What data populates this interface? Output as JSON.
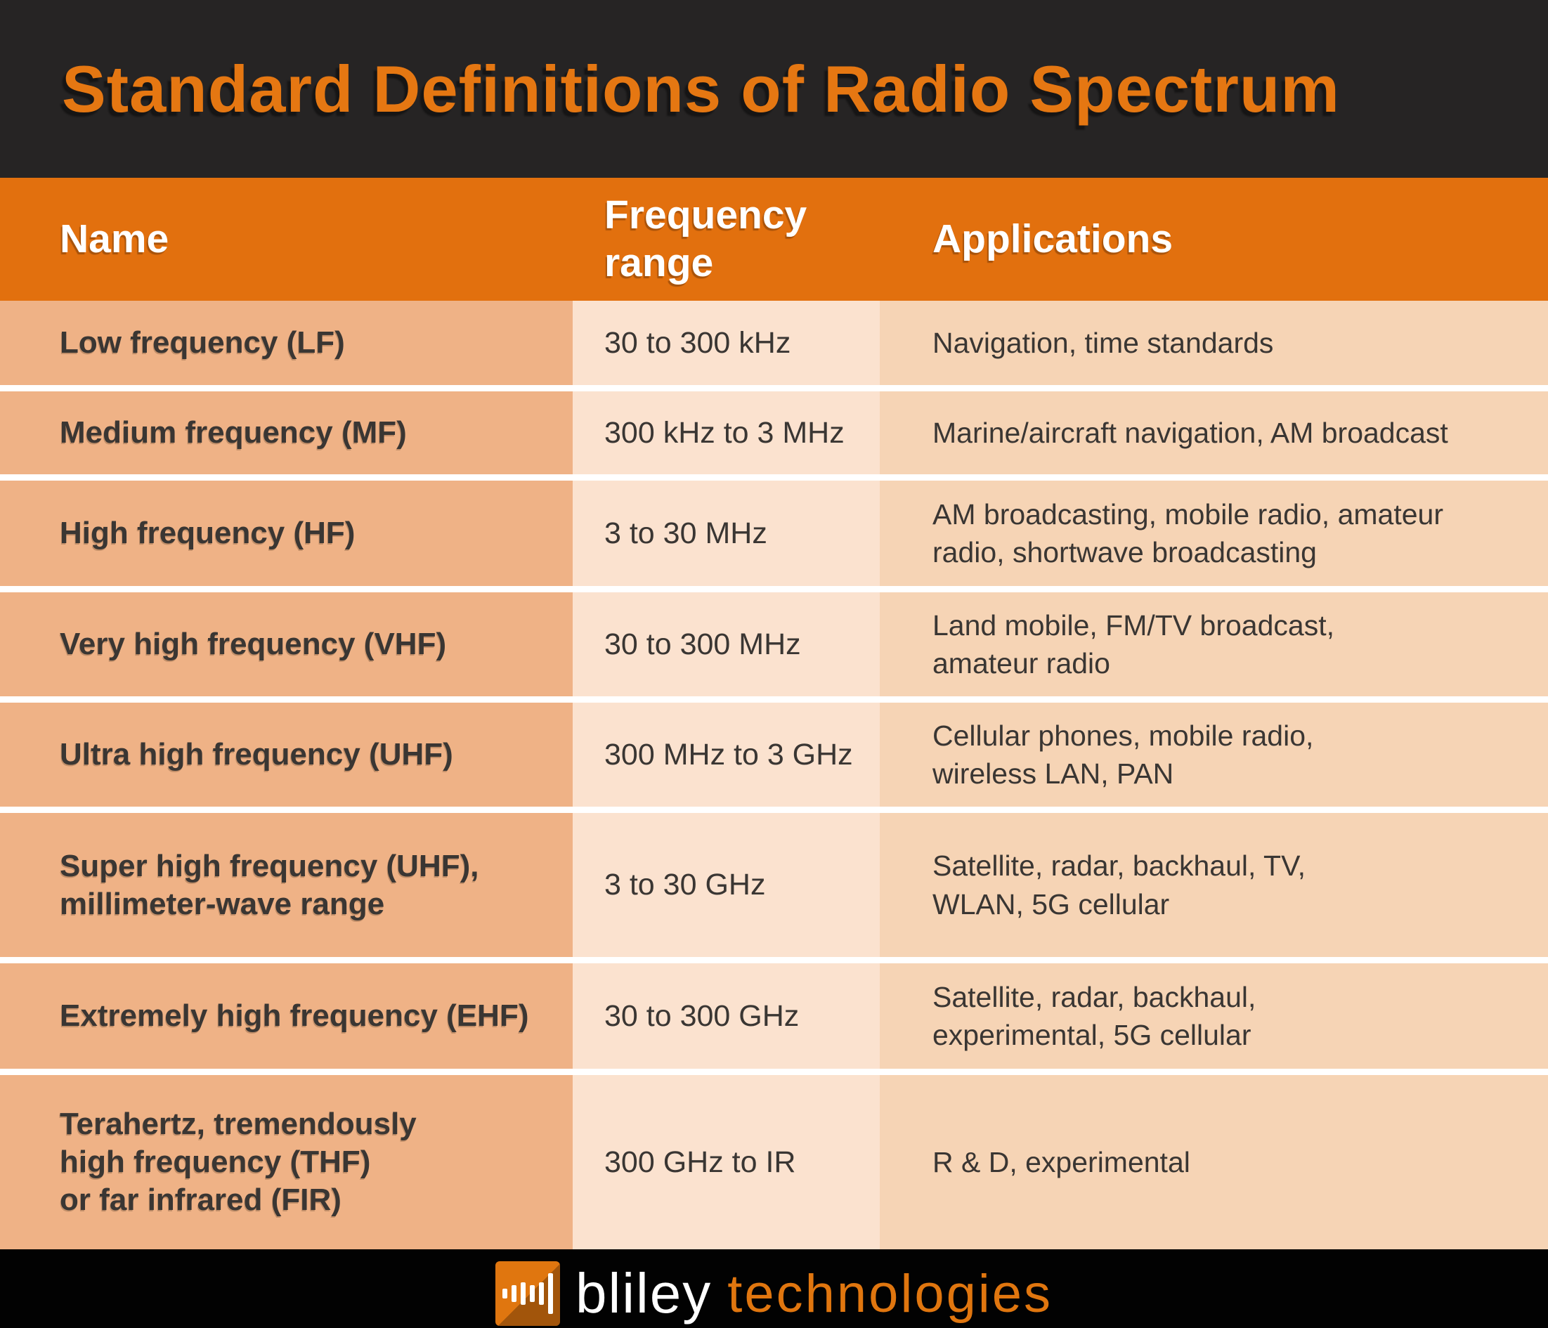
{
  "title": "Standard Definitions of Radio Spectrum",
  "table": {
    "columns": [
      {
        "label": "Name"
      },
      {
        "label": "Frequency\nrange"
      },
      {
        "label": "Applications"
      }
    ],
    "rows": [
      {
        "name": "Low frequency (LF)",
        "frequency": "30 to 300 kHz",
        "applications": "Navigation, time standards"
      },
      {
        "name": "Medium frequency (MF)",
        "frequency": "300 kHz to 3 MHz",
        "applications": "Marine/aircraft navigation, AM broadcast"
      },
      {
        "name": "High frequency (HF)",
        "frequency": "3 to 30 MHz",
        "applications": "AM broadcasting, mobile radio, amateur\nradio, shortwave broadcasting"
      },
      {
        "name": "Very high frequency (VHF)",
        "frequency": "30 to 300 MHz",
        "applications": "Land mobile, FM/TV broadcast,\namateur radio"
      },
      {
        "name": "Ultra high frequency (UHF)",
        "frequency": "300 MHz to 3 GHz",
        "applications": "Cellular phones, mobile radio,\nwireless LAN, PAN"
      },
      {
        "name": "Super high frequency (UHF),\nmillimeter-wave range",
        "frequency": "3 to 30 GHz",
        "applications": "Satellite, radar, backhaul, TV,\nWLAN, 5G cellular"
      },
      {
        "name": "Extremely high frequency (EHF)",
        "frequency": "30 to 300 GHz",
        "applications": "Satellite, radar, backhaul,\nexperimental, 5G cellular"
      },
      {
        "name": "Terahertz, tremendously\nhigh frequency (THF)\nor far infrared (FIR)",
        "frequency": "300 GHz to IR",
        "applications": "R & D, experimental"
      }
    ]
  },
  "footer": {
    "brand": "bliley",
    "suffix": "technologies",
    "icon": "waveform-icon"
  },
  "colors": {
    "accent_orange": "#e2700e",
    "title_orange": "#e57712",
    "dark_band": "#262424",
    "name_cell_bg": "#efb286",
    "frequency_cell_bg": "#fbe2cf",
    "applications_cell_bg": "#f6d4b5",
    "text_dark": "#3a3633",
    "row_separator": "#ffffff",
    "footer_bg": "#020202",
    "logo_orange": "#e0760f"
  }
}
